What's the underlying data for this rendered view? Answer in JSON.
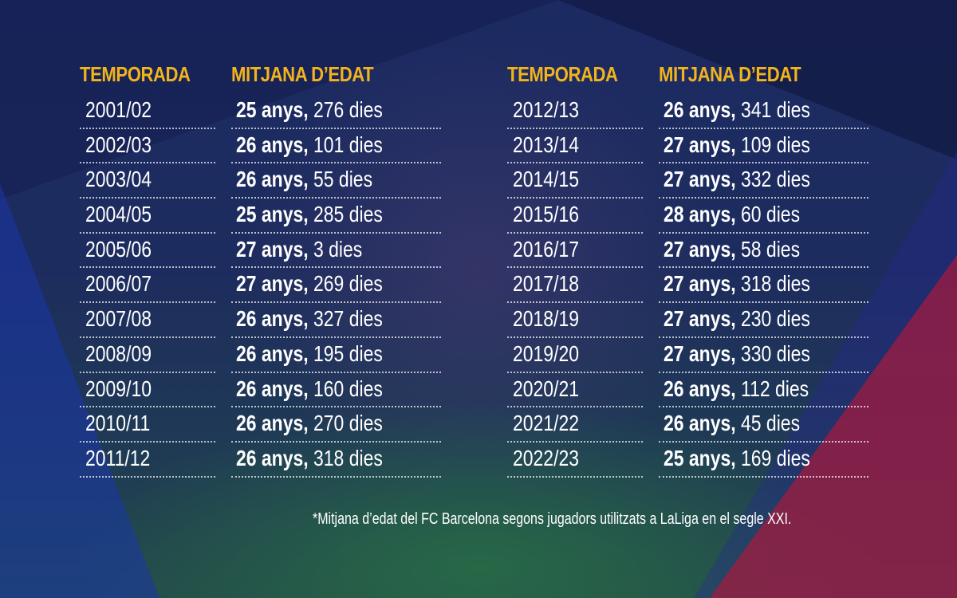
{
  "headers": {
    "season": "TEMPORADA",
    "age": "MITJANA D’EDAT"
  },
  "left_table": [
    {
      "season": "2001/02",
      "years": "25 anys,",
      "days": "276 dies"
    },
    {
      "season": "2002/03",
      "years": "26 anys,",
      "days": "101 dies"
    },
    {
      "season": "2003/04",
      "years": "26 anys,",
      "days": "55 dies"
    },
    {
      "season": "2004/05",
      "years": "25 anys,",
      "days": "285 dies"
    },
    {
      "season": "2005/06",
      "years": "27 anys,",
      "days": "3 dies"
    },
    {
      "season": "2006/07",
      "years": "27 anys,",
      "days": "269 dies"
    },
    {
      "season": "2007/08",
      "years": "26 anys,",
      "days": "327 dies"
    },
    {
      "season": "2008/09",
      "years": "26 anys,",
      "days": "195 dies"
    },
    {
      "season": "2009/10",
      "years": "26 anys,",
      "days": "160 dies"
    },
    {
      "season": "2010/11",
      "years": "26 anys,",
      "days": "270 dies"
    },
    {
      "season": "2011/12",
      "years": "26 anys,",
      "days": "318 dies"
    }
  ],
  "right_table": [
    {
      "season": "2012/13",
      "years": "26 anys,",
      "days": "341 dies"
    },
    {
      "season": "2013/14",
      "years": "27 anys,",
      "days": "109 dies"
    },
    {
      "season": "2014/15",
      "years": "27 anys,",
      "days": "332 dies"
    },
    {
      "season": "2015/16",
      "years": "28 anys,",
      "days": "60 dies"
    },
    {
      "season": "2016/17",
      "years": "27 anys,",
      "days": "58 dies"
    },
    {
      "season": "2017/18",
      "years": "27 anys,",
      "days": "318 dies"
    },
    {
      "season": "2018/19",
      "years": "27 anys,",
      "days": "230 dies"
    },
    {
      "season": "2019/20",
      "years": "27 anys,",
      "days": "330 dies"
    },
    {
      "season": "2020/21",
      "years": "26 anys,",
      "days": "112 dies"
    },
    {
      "season": "2021/22",
      "years": "26 anys,",
      "days": "45 dies"
    },
    {
      "season": "2022/23",
      "years": "25 anys,",
      "days": "169 dies"
    }
  ],
  "footnote": "*Mitjana d’edat del FC Barcelona segons jugadors utilitzats a LaLiga en el segle XXI.",
  "colors": {
    "header": "#f2b41c",
    "background": "#1c2a62",
    "accent_red": "#aa193c",
    "accent_blue": "#1937aa"
  }
}
